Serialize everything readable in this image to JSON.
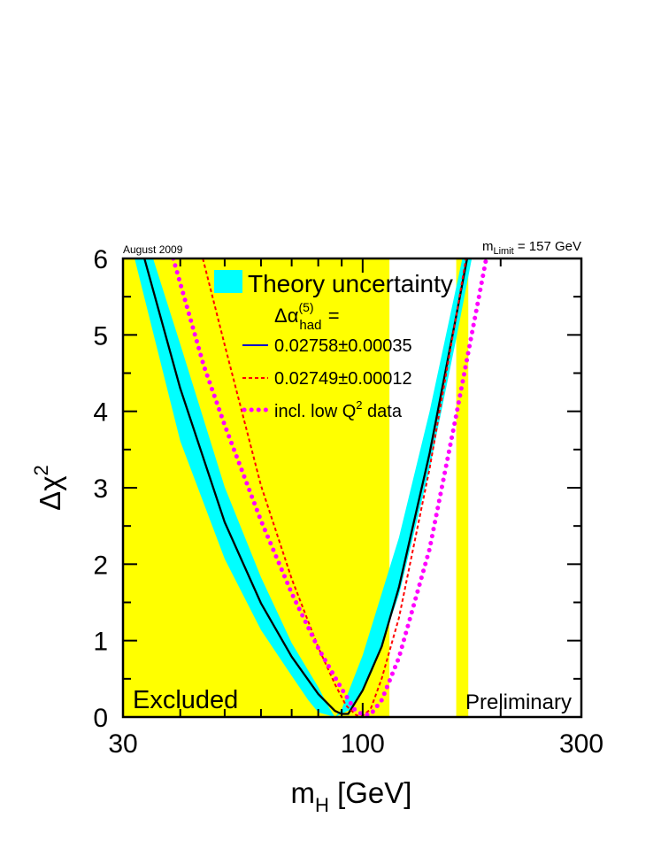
{
  "chart_data": {
    "type": "line",
    "xscale": "log",
    "xlim": [
      30,
      300
    ],
    "ylim": [
      0,
      6
    ],
    "xlabel": {
      "main": "m",
      "sub": "H",
      "rest": " [GeV]"
    },
    "ylabel": {
      "main": "Δχ",
      "sup": "2"
    },
    "x_tick_labels": [
      {
        "value": 30,
        "label": "30"
      },
      {
        "value": 100,
        "label": "100"
      },
      {
        "value": 300,
        "label": "300"
      }
    ],
    "y_tick_labels": [
      0,
      1,
      2,
      3,
      4,
      5,
      6
    ],
    "corner_left": "August 2009",
    "corner_right": {
      "main": "m",
      "sub": "Limit",
      "rest": " = 157 GeV"
    },
    "excluded_label": "Excluded",
    "preliminary_label": "Preliminary",
    "excluded_regions": [
      {
        "x": [
          30,
          114.4
        ],
        "color": "#ffff00"
      },
      {
        "x": [
          160,
          170
        ],
        "color": "#ffff00"
      }
    ],
    "theory_band": {
      "color": "#00ffff",
      "center_min": 87,
      "upper": [
        [
          34.9,
          6
        ],
        [
          40,
          4.88
        ],
        [
          50,
          3.01
        ],
        [
          60,
          1.83
        ],
        [
          70,
          0.97
        ],
        [
          80,
          0.39
        ],
        [
          84.5,
          0.12
        ],
        [
          87,
          0
        ],
        [
          95,
          0.11
        ],
        [
          105,
          0.6
        ],
        [
          120,
          1.6
        ],
        [
          140,
          3.25
        ],
        [
          160,
          4.95
        ],
        [
          173,
          6
        ]
      ],
      "lower": [
        [
          31.8,
          6
        ],
        [
          40,
          3.61
        ],
        [
          50,
          2.07
        ],
        [
          60,
          1.14
        ],
        [
          70,
          0.54
        ],
        [
          76.1,
          0.22
        ],
        [
          80,
          0.06
        ],
        [
          87,
          0
        ],
        [
          90,
          0.1
        ],
        [
          100,
          0.81
        ],
        [
          120,
          2.35
        ],
        [
          140,
          4.0
        ],
        [
          165,
          6
        ]
      ]
    },
    "series": [
      {
        "name": "0.02758±0.00035",
        "color": "#000000",
        "style": "solid",
        "points": [
          [
            33.4,
            6
          ],
          [
            40,
            4.3
          ],
          [
            50,
            2.55
          ],
          [
            60,
            1.49
          ],
          [
            70,
            0.79
          ],
          [
            80,
            0.3
          ],
          [
            87,
            0.08
          ],
          [
            90,
            0.04
          ],
          [
            93,
            0.04
          ],
          [
            100,
            0.35
          ],
          [
            110,
            0.92
          ],
          [
            120,
            1.7
          ],
          [
            140,
            3.45
          ],
          [
            160,
            5.25
          ],
          [
            169,
            6
          ]
        ]
      },
      {
        "name": "0.02749±0.00012",
        "color": "#ff0000",
        "style": "dashed",
        "points": [
          [
            44.8,
            6
          ],
          [
            50,
            4.87
          ],
          [
            60,
            3.03
          ],
          [
            70,
            1.81
          ],
          [
            80,
            0.91
          ],
          [
            87,
            0.43
          ],
          [
            92,
            0.15
          ],
          [
            97,
            0.02
          ],
          [
            100,
            0.02
          ],
          [
            104,
            0.1
          ],
          [
            110,
            0.5
          ],
          [
            120,
            1.3
          ],
          [
            140,
            3.25
          ],
          [
            160,
            5.25
          ],
          [
            168,
            6
          ]
        ]
      },
      {
        "name": "incl. low Q",
        "name_sup": "2",
        "name_rest": " data",
        "color": "#ff00ff",
        "style": "dotted",
        "points": [
          [
            38.6,
            6
          ],
          [
            45,
            4.6
          ],
          [
            50,
            3.82
          ],
          [
            60,
            2.57
          ],
          [
            70,
            1.62
          ],
          [
            80,
            0.9
          ],
          [
            90,
            0.37
          ],
          [
            96,
            0.1
          ],
          [
            100,
            0.03
          ],
          [
            104,
            0.03
          ],
          [
            110,
            0.22
          ],
          [
            120,
            0.78
          ],
          [
            140,
            2.2
          ],
          [
            160,
            3.95
          ],
          [
            180,
            5.55
          ],
          [
            186,
            6
          ]
        ]
      }
    ],
    "legend": {
      "placement": "top-center",
      "band_label": "Theory uncertainty",
      "header": {
        "main": "Δα",
        "sub": "had",
        "sup": "(5)",
        "rest": " ="
      },
      "band_color": "#00ffff",
      "header_color": "#0000cc",
      "entry_colors": [
        "#0000cc",
        "#ff0000",
        "#ff00ff"
      ]
    }
  }
}
